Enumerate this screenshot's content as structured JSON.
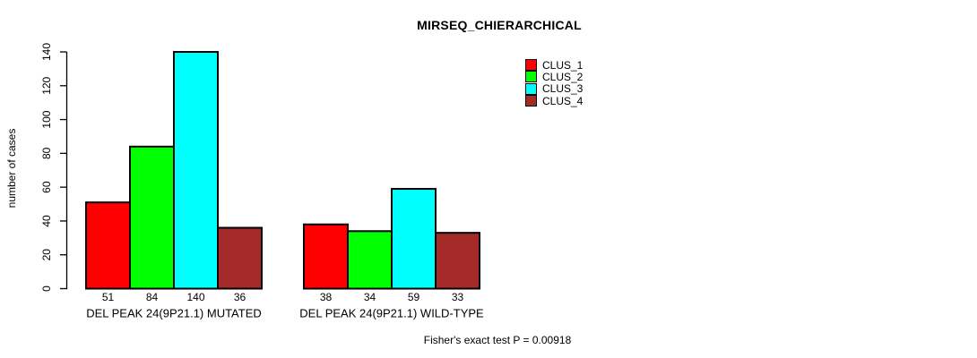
{
  "title": "MIRSEQ_CHIERARCHICAL",
  "y_axis_label": "number of cases",
  "footer": "Fisher's exact test P = 0.00918",
  "chart_data": {
    "type": "bar",
    "title": "MIRSEQ_CHIERARCHICAL",
    "xlabel": "",
    "ylabel": "number of cases",
    "categories": [
      "DEL PEAK 24(9P21.1) MUTATED",
      "DEL PEAK 24(9P21.1) WILD-TYPE"
    ],
    "series": [
      {
        "name": "CLUS_1",
        "color": "#ff0000",
        "values": [
          51,
          38
        ]
      },
      {
        "name": "CLUS_2",
        "color": "#00ff00",
        "values": [
          84,
          34
        ]
      },
      {
        "name": "CLUS_3",
        "color": "#00ffff",
        "values": [
          140,
          59
        ]
      },
      {
        "name": "CLUS_4",
        "color": "#a52a2a",
        "values": [
          36,
          33
        ]
      }
    ],
    "bar_value_labels": [
      [
        51,
        84,
        140,
        36
      ],
      [
        38,
        34,
        59,
        33
      ]
    ],
    "yticks": [
      0,
      20,
      40,
      60,
      80,
      100,
      120,
      140
    ],
    "ylim": [
      0,
      140
    ],
    "grid": false,
    "legend_position": "top-right",
    "bar_border_color": "#000000",
    "annotation": "Fisher's exact test P = 0.00918"
  }
}
